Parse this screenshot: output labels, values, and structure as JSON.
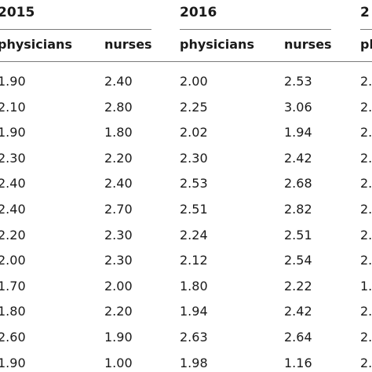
{
  "years": [
    "2015",
    "2016",
    "2"
  ],
  "columns": [
    "physicians",
    "nurses",
    "physicians",
    "nurses",
    "pl"
  ],
  "rows": [
    [
      "1.90",
      "2.40",
      "2.00",
      "2.53",
      "2."
    ],
    [
      "2.10",
      "2.80",
      "2.25",
      "3.06",
      "2."
    ],
    [
      "1.90",
      "1.80",
      "2.02",
      "1.94",
      "2."
    ],
    [
      "2.30",
      "2.20",
      "2.30",
      "2.42",
      "2."
    ],
    [
      "2.40",
      "2.40",
      "2.53",
      "2.68",
      "2."
    ],
    [
      "2.40",
      "2.70",
      "2.51",
      "2.82",
      "2."
    ],
    [
      "2.20",
      "2.30",
      "2.24",
      "2.51",
      "2."
    ],
    [
      "2.00",
      "2.30",
      "2.12",
      "2.54",
      "2."
    ],
    [
      "1.70",
      "2.00",
      "1.80",
      "2.22",
      "1."
    ],
    [
      "1.80",
      "2.20",
      "1.94",
      "2.42",
      "2."
    ],
    [
      "2.60",
      "1.90",
      "2.63",
      "2.64",
      "2."
    ],
    [
      "1.90",
      "1.00",
      "1.98",
      "1.16",
      "2."
    ]
  ]
}
